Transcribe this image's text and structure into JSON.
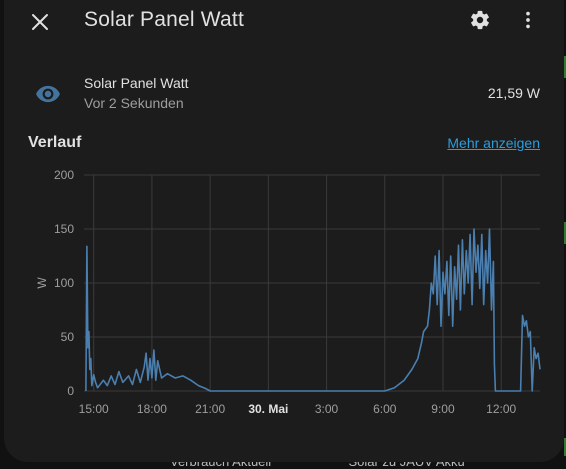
{
  "dialog": {
    "title": "Solar Panel Watt",
    "close_icon": "close-icon",
    "settings_icon": "gear-icon",
    "menu_icon": "more-vertical-icon"
  },
  "entity": {
    "name": "Solar Panel Watt",
    "last_changed": "Vor 2 Sekunden",
    "state": "21,59 W",
    "icon": "eye-icon"
  },
  "history": {
    "label": "Verlauf",
    "more_link": "Mehr anzeigen"
  },
  "colors": {
    "background": "#1c1c1c",
    "line": "#4a7fb0",
    "link": "#2d9cdb"
  },
  "background_text": {
    "left": "Verbrauch Aktuell",
    "right": "Solar zu JAUV Akku"
  },
  "chart_data": {
    "type": "line",
    "ylabel": "W",
    "ylim": [
      0,
      200
    ],
    "yticks": [
      "0",
      "50",
      "100",
      "150",
      "200"
    ],
    "xticks": [
      "15:00",
      "18:00",
      "21:00",
      "30. Mai",
      "3:00",
      "6:00",
      "9:00",
      "12:00"
    ],
    "xtick_hours": [
      15,
      18,
      21,
      24,
      27,
      30,
      33,
      36
    ],
    "series": [
      {
        "values": [
          [
            14.6,
            0
          ],
          [
            14.65,
            134
          ],
          [
            14.7,
            40
          ],
          [
            14.75,
            55
          ],
          [
            14.8,
            20
          ],
          [
            14.85,
            30
          ],
          [
            14.9,
            5
          ],
          [
            15.0,
            15
          ],
          [
            15.1,
            8
          ],
          [
            15.2,
            3
          ],
          [
            15.5,
            10
          ],
          [
            15.7,
            5
          ],
          [
            15.9,
            14
          ],
          [
            16.1,
            6
          ],
          [
            16.3,
            18
          ],
          [
            16.5,
            8
          ],
          [
            16.8,
            14
          ],
          [
            17.0,
            6
          ],
          [
            17.2,
            20
          ],
          [
            17.4,
            8
          ],
          [
            17.6,
            22
          ],
          [
            17.7,
            35
          ],
          [
            17.8,
            10
          ],
          [
            17.9,
            30
          ],
          [
            18.0,
            12
          ],
          [
            18.1,
            38
          ],
          [
            18.2,
            10
          ],
          [
            18.3,
            28
          ],
          [
            18.5,
            12
          ],
          [
            18.8,
            16
          ],
          [
            19.2,
            12
          ],
          [
            19.6,
            14
          ],
          [
            20.0,
            10
          ],
          [
            20.4,
            5
          ],
          [
            20.8,
            2
          ],
          [
            21.0,
            0
          ],
          [
            30.0,
            0
          ],
          [
            30.5,
            3
          ],
          [
            31.0,
            10
          ],
          [
            31.4,
            20
          ],
          [
            31.7,
            30
          ],
          [
            31.9,
            45
          ],
          [
            32.0,
            55
          ],
          [
            32.2,
            60
          ],
          [
            32.3,
            75
          ],
          [
            32.4,
            100
          ],
          [
            32.5,
            90
          ],
          [
            32.6,
            125
          ],
          [
            32.7,
            80
          ],
          [
            32.8,
            130
          ],
          [
            32.9,
            60
          ],
          [
            33.0,
            110
          ],
          [
            33.1,
            90
          ],
          [
            33.2,
            120
          ],
          [
            33.3,
            70
          ],
          [
            33.4,
            125
          ],
          [
            33.5,
            60
          ],
          [
            33.6,
            115
          ],
          [
            33.7,
            85
          ],
          [
            33.8,
            135
          ],
          [
            33.9,
            75
          ],
          [
            34.0,
            140
          ],
          [
            34.1,
            90
          ],
          [
            34.2,
            130
          ],
          [
            34.3,
            100
          ],
          [
            34.4,
            145
          ],
          [
            34.5,
            80
          ],
          [
            34.6,
            150
          ],
          [
            34.7,
            110
          ],
          [
            34.8,
            135
          ],
          [
            34.9,
            95
          ],
          [
            35.0,
            145
          ],
          [
            35.1,
            80
          ],
          [
            35.2,
            130
          ],
          [
            35.3,
            100
          ],
          [
            35.4,
            150
          ],
          [
            35.5,
            75
          ],
          [
            35.6,
            120
          ],
          [
            35.65,
            25
          ],
          [
            35.7,
            0
          ],
          [
            37.0,
            0
          ],
          [
            37.1,
            70
          ],
          [
            37.2,
            60
          ],
          [
            37.3,
            65
          ],
          [
            37.4,
            50
          ],
          [
            37.5,
            55
          ],
          [
            37.6,
            0
          ],
          [
            37.7,
            40
          ],
          [
            37.8,
            30
          ],
          [
            37.9,
            35
          ],
          [
            38.0,
            20
          ]
        ]
      }
    ]
  }
}
